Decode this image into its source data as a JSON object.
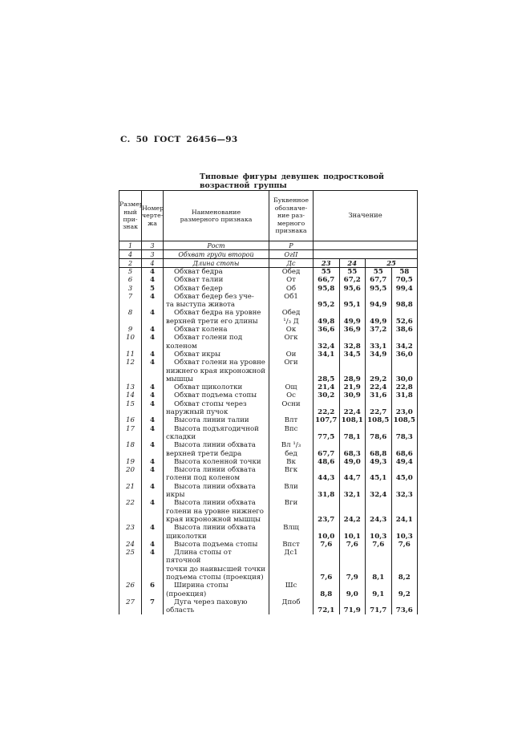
{
  "page_header": "С. 50 ГОСТ 26456—93",
  "title": "Типовые фигуры девушек подростковой возрастной группы",
  "table": {
    "headers": {
      "col_feature": "Размер-\nный\nпри-\nзнак",
      "col_sheet": "Номер\nчерте-\nжа",
      "col_name": "Наименование\nразмерного признака",
      "col_designation": "Буквенное\nобозначе-\nние раз-\nмерного\nпризнака",
      "col_value": "Значение"
    },
    "intro_rows": [
      {
        "num": "1",
        "sheet": "3",
        "name": "Рост",
        "desig": "Р"
      },
      {
        "num": "4",
        "sheet": "3",
        "name": "Обхват груди второй",
        "desig": "ОгII"
      },
      {
        "num": "2",
        "sheet": "4",
        "name": "Длина стопы",
        "desig": "Дс",
        "sizes": [
          "23",
          "24",
          "25"
        ]
      }
    ],
    "rows": [
      {
        "num": "5",
        "sheet": "4",
        "name": "Обхват бедра",
        "desig": "Обед",
        "values": [
          "55",
          "55",
          "55",
          "58"
        ]
      },
      {
        "num": "6",
        "sheet": "4",
        "name": "Обхват талии",
        "desig": "От",
        "values": [
          "66,7",
          "67,2",
          "67,7",
          "70,5"
        ]
      },
      {
        "num": "3",
        "sheet": "5",
        "name": "Обхват бедер",
        "desig": "Об",
        "values": [
          "95,8",
          "95,6",
          "95,5",
          "99,4"
        ]
      },
      {
        "num": "7",
        "sheet": "4",
        "name": "Обхват бедер без уче-\nта выступа живота",
        "desig": "Об1",
        "values": [
          "95,2",
          "95,1",
          "94,9",
          "98,8"
        ]
      },
      {
        "num": "8",
        "sheet": "4",
        "name": "Обхват бедра на уровне\nверхней трети его длины",
        "desig": "Обед\n¹/₃ Д",
        "values": [
          "49,8",
          "49,9",
          "49,9",
          "52,6"
        ]
      },
      {
        "num": "9",
        "sheet": "4",
        "name": "Обхват колена",
        "desig": "Ок",
        "values": [
          "36,6",
          "36,9",
          "37,2",
          "38,6"
        ]
      },
      {
        "num": "10",
        "sheet": "4",
        "name": "Обхват голени под\nколеном",
        "desig": "Огк",
        "values": [
          "32,4",
          "32,8",
          "33,1",
          "34,2"
        ]
      },
      {
        "num": "11",
        "sheet": "4",
        "name": "Обхват икры",
        "desig": "Ои",
        "values": [
          "34,1",
          "34,5",
          "34,9",
          "36,0"
        ]
      },
      {
        "num": "12",
        "sheet": "4",
        "name": "Обхват голени на уровне\nнижнего края икроножной\nмышцы",
        "desig": "Оги",
        "values": [
          "28,5",
          "28,9",
          "29,2",
          "30,0"
        ]
      },
      {
        "num": "13",
        "sheet": "4",
        "name": "Обхват щиколотки",
        "desig": "Ощ",
        "values": [
          "21,4",
          "21,9",
          "22,4",
          "22,8"
        ]
      },
      {
        "num": "14",
        "sheet": "4",
        "name": "Обхват подъема стопы",
        "desig": "Ос",
        "values": [
          "30,2",
          "30,9",
          "31,6",
          "31,8"
        ]
      },
      {
        "num": "15",
        "sheet": "4",
        "name": "Обхват стопы через\nнаружный пучок",
        "desig": "Осни",
        "values": [
          "22,2",
          "22,4",
          "22,7",
          "23,0"
        ]
      },
      {
        "num": "16",
        "sheet": "4",
        "name": "Высота линии талии",
        "desig": "Влт",
        "values": [
          "107,7",
          "108,1",
          "108,5",
          "108,5"
        ]
      },
      {
        "num": "17",
        "sheet": "4",
        "name": "Высота подъягодичной\nскладки",
        "desig": "Впс",
        "values": [
          "77,5",
          "78,1",
          "78,6",
          "78,3"
        ]
      },
      {
        "num": "18",
        "sheet": "4",
        "name": "Высота линии обхвата\nверхней трети бедра",
        "desig": "Вл ¹/₃\nбед",
        "values": [
          "67,7",
          "68,3",
          "68,8",
          "68,6"
        ]
      },
      {
        "num": "19",
        "sheet": "4",
        "name": "Высота коленной точки",
        "desig": "Вк",
        "values": [
          "48,6",
          "49,0",
          "49,3",
          "49,4"
        ]
      },
      {
        "num": "20",
        "sheet": "4",
        "name": "Высота линии обхвата\nголени под коленом",
        "desig": "Вгк",
        "values": [
          "44,3",
          "44,7",
          "45,1",
          "45,0"
        ]
      },
      {
        "num": "21",
        "sheet": "4",
        "name": "Высота линии обхвата\nикры",
        "desig": "Вли",
        "values": [
          "31,8",
          "32,1",
          "32,4",
          "32,3"
        ]
      },
      {
        "num": "22",
        "sheet": "4",
        "name": "Высота линии обхвата\nголени на уровне нижнего\nкрая икроножной мышцы",
        "desig": "Вги",
        "values": [
          "23,7",
          "24,2",
          "24,3",
          "24,1"
        ]
      },
      {
        "num": "23",
        "sheet": "4",
        "name": "Высота линии обхвата\nщиколотки",
        "desig": "Влщ",
        "values": [
          "10,0",
          "10,1",
          "10,3",
          "10,3"
        ]
      },
      {
        "num": "24",
        "sheet": "4",
        "name": "Высота подъема стопы",
        "desig": "Впст",
        "values": [
          "7,6",
          "7,6",
          "7,6",
          "7,6"
        ]
      },
      {
        "num": "25",
        "sheet": "4",
        "name": "Длина стопы от пяточной\nточки до наивысшей точки\nподъема стопы (проекция)",
        "desig": "Дс1",
        "values": [
          "7,6",
          "7,9",
          "8,1",
          "8,2"
        ]
      },
      {
        "num": "26",
        "sheet": "6",
        "name": "Ширина стопы (проекция)",
        "desig": "Шс",
        "values": [
          "8,8",
          "9,0",
          "9,1",
          "9,2"
        ]
      },
      {
        "num": "27",
        "sheet": "7",
        "name": "Дуга через паховую\nобласть",
        "desig": "Дпоб",
        "values": [
          "72,1",
          "71,9",
          "71,7",
          "73,6"
        ]
      }
    ]
  }
}
